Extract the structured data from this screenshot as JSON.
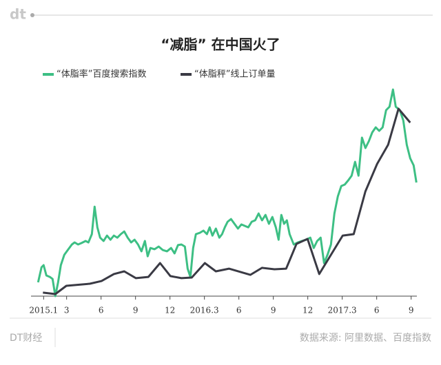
{
  "brand": "dt",
  "footer": {
    "left": "DT财经",
    "right": "数据来源: 阿里数据、百度指数"
  },
  "chart_data": {
    "type": "line",
    "title": "“减脂” 在中国火了",
    "xlim": [
      -0.5,
      32.5
    ],
    "xticks": [
      {
        "value": 0,
        "label": "2015.1"
      },
      {
        "value": 2,
        "label": "3"
      },
      {
        "value": 5,
        "label": "6"
      },
      {
        "value": 8,
        "label": "9"
      },
      {
        "value": 11,
        "label": "12"
      },
      {
        "value": 14,
        "label": "2016.3"
      },
      {
        "value": 17,
        "label": "6"
      },
      {
        "value": 20,
        "label": "9"
      },
      {
        "value": 23,
        "label": "12"
      },
      {
        "value": 26,
        "label": "2017.3"
      },
      {
        "value": 29,
        "label": "6"
      },
      {
        "value": 32,
        "label": "9"
      }
    ],
    "ylim": [
      0,
      100
    ],
    "legend": "top-left",
    "series": [
      {
        "name": "“体脂率”百度搜索指数",
        "color": "#3dbf84",
        "x": [
          -0.48,
          -0.18,
          0,
          0.24,
          0.54,
          0.78,
          1.02,
          1.26,
          1.5,
          1.8,
          2.1,
          2.46,
          2.7,
          3.0,
          3.3,
          3.66,
          3.9,
          4.2,
          4.44,
          4.68,
          4.92,
          5.22,
          5.52,
          5.82,
          6.12,
          6.42,
          6.72,
          7.02,
          7.32,
          7.62,
          7.92,
          8.22,
          8.52,
          8.82,
          9.06,
          9.3,
          9.66,
          10.02,
          10.38,
          10.74,
          11.1,
          11.4,
          11.7,
          12.0,
          12.3,
          12.54,
          12.78,
          13.02,
          13.26,
          13.62,
          13.92,
          14.22,
          14.46,
          14.7,
          15.0,
          15.3,
          15.54,
          15.78,
          16.02,
          16.32,
          16.62,
          16.92,
          17.22,
          17.52,
          17.82,
          18.12,
          18.42,
          18.72,
          19.02,
          19.32,
          19.62,
          19.92,
          20.22,
          20.46,
          20.7,
          20.94,
          21.18,
          21.42,
          21.78,
          22.14,
          22.5,
          22.86,
          23.22,
          23.52,
          23.82,
          24.12,
          24.42,
          24.72,
          25.02,
          25.32,
          25.62,
          25.92,
          26.22,
          26.52,
          26.82,
          27.12,
          27.42,
          27.72,
          28.02,
          28.32,
          28.62,
          28.92,
          29.22,
          29.52,
          29.82,
          30.12,
          30.42,
          30.66,
          31.02,
          31.32,
          31.62,
          31.92,
          32.22,
          32.46
        ],
        "values": [
          6.7,
          14,
          15,
          10,
          9.3,
          8.3,
          0,
          6.7,
          15,
          20,
          22.3,
          25,
          26,
          25,
          25.7,
          26.7,
          26,
          30,
          43.3,
          33.3,
          28.3,
          26.7,
          29.3,
          27.3,
          29.3,
          28.3,
          30,
          31.3,
          28.3,
          26,
          27.3,
          25,
          21.7,
          26.7,
          19.3,
          23.3,
          22.7,
          24,
          22.3,
          21.7,
          23.3,
          20.7,
          24.7,
          25,
          24,
          13.3,
          9.3,
          23.3,
          30,
          30.7,
          31.7,
          30,
          33.3,
          29.3,
          32.7,
          28.3,
          30,
          33.3,
          36,
          37.3,
          35,
          32.7,
          34.7,
          34,
          33.3,
          36,
          36.7,
          40,
          36.7,
          39.3,
          35,
          38.3,
          33.3,
          27.3,
          39.3,
          35,
          36.7,
          30,
          25,
          26,
          26.7,
          27.3,
          28.3,
          23.3,
          26.7,
          28.3,
          16,
          20,
          25,
          40,
          48.3,
          53.3,
          54,
          56,
          58.3,
          65,
          58.3,
          76.7,
          71.7,
          75,
          79.3,
          81.7,
          80,
          81.7,
          90,
          91.7,
          100,
          91.7,
          90,
          85,
          73.3,
          66.7,
          63.3,
          55
        ]
      },
      {
        "name": "“体脂秤”线上订单量",
        "color": "#3a3a44",
        "x": [
          -0.06,
          1.02,
          1.98,
          4.02,
          5.04,
          6.12,
          7.02,
          8.04,
          9.12,
          10.14,
          11.04,
          12.0,
          12.9,
          14.04,
          15.0,
          16.14,
          18.0,
          19.02,
          20.1,
          21.12,
          22.02,
          22.98,
          24.0,
          25.02,
          26.04,
          27.0,
          28.02,
          29.04,
          30.0,
          30.9,
          31.92
        ],
        "values": [
          1.7,
          1,
          5,
          6,
          7.3,
          10.7,
          12,
          8.7,
          9.3,
          16,
          9.7,
          8.7,
          9,
          16,
          12,
          13.3,
          10.3,
          13.7,
          13,
          13.3,
          25.3,
          27.7,
          10.7,
          20,
          29.3,
          30,
          50.7,
          64,
          73.3,
          90.7,
          84
        ]
      }
    ]
  }
}
